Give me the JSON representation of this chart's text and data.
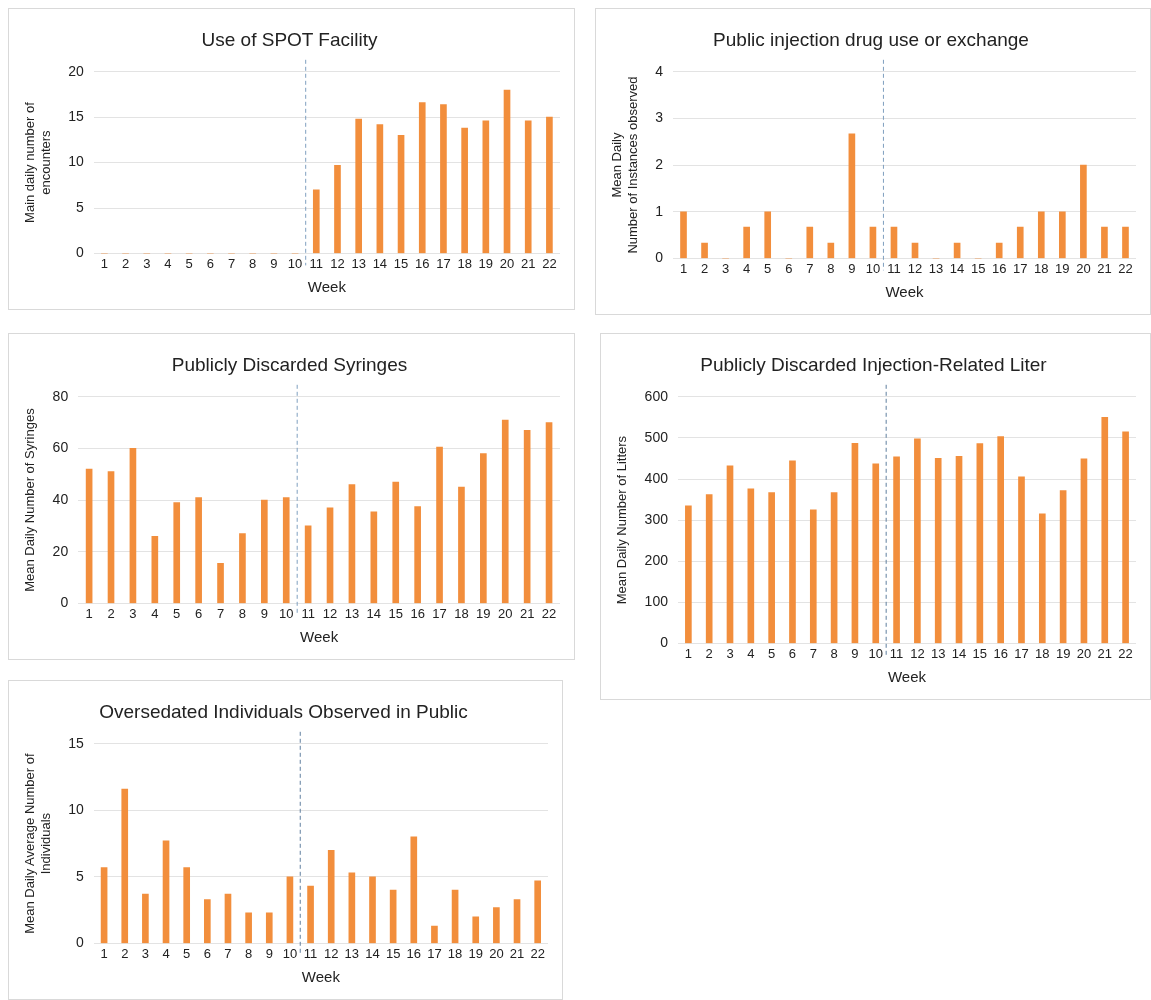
{
  "chart_data": [
    {
      "type": "bar",
      "title": "Use of SPOT Facility",
      "xlabel": "Week",
      "ylabel": "Main daily number of\nencounters",
      "x": [
        1,
        2,
        3,
        4,
        5,
        6,
        7,
        8,
        9,
        10,
        11,
        12,
        13,
        14,
        15,
        16,
        17,
        18,
        19,
        20,
        21,
        22
      ],
      "xlim": [
        0.5,
        22.5
      ],
      "xticks": [
        1,
        2,
        3,
        4,
        5,
        6,
        7,
        8,
        9,
        10,
        11,
        12,
        13,
        14,
        15,
        16,
        17,
        18,
        19,
        20,
        21,
        22
      ],
      "values": [
        0,
        0,
        0,
        0,
        0,
        0,
        0,
        0,
        0,
        0,
        7,
        9.7,
        14.8,
        14.2,
        13,
        16.6,
        16.4,
        13.8,
        14.6,
        18,
        14.6,
        15
      ],
      "color": "#f28e3c",
      "ylim": [
        0,
        20
      ],
      "yticks": [
        0,
        5,
        10,
        15,
        20
      ],
      "grid": "y",
      "legend": false,
      "ref_lines": [
        {
          "axis": "x",
          "value": 10.5,
          "color": "#7f9fbf",
          "line_style": "dashed"
        }
      ]
    },
    {
      "type": "bar",
      "title": "Public injection drug use or exchange",
      "xlabel": "Week",
      "ylabel": "Mean Daily\nNumber of Instances observed",
      "x": [
        1,
        2,
        3,
        4,
        5,
        6,
        7,
        8,
        9,
        10,
        11,
        12,
        13,
        14,
        15,
        16,
        17,
        18,
        19,
        20,
        21,
        22
      ],
      "xlim": [
        0.5,
        22.5
      ],
      "xticks": [
        1,
        2,
        3,
        4,
        5,
        6,
        7,
        8,
        9,
        10,
        11,
        12,
        13,
        14,
        15,
        16,
        17,
        18,
        19,
        20,
        21,
        22
      ],
      "values": [
        1,
        0.33,
        0,
        0.67,
        1,
        0,
        0.67,
        0.33,
        2.67,
        0.67,
        0.67,
        0.33,
        0,
        0.33,
        0,
        0.33,
        0.67,
        1,
        1,
        2,
        0.67,
        0.67
      ],
      "color": "#f28e3c",
      "ylim": [
        0,
        4
      ],
      "yticks": [
        0,
        1,
        2,
        3,
        4
      ],
      "grid": "y",
      "legend": false,
      "ref_lines": [
        {
          "axis": "x",
          "value": 10.5,
          "color": "#7f9fbf",
          "line_style": "dashed"
        }
      ]
    },
    {
      "type": "bar",
      "title": "Publicly Discarded Syringes",
      "xlabel": "Week",
      "ylabel": "Mean Daily Number of Syringes",
      "x": [
        1,
        2,
        3,
        4,
        5,
        6,
        7,
        8,
        9,
        10,
        11,
        12,
        13,
        14,
        15,
        16,
        17,
        18,
        19,
        20,
        21,
        22
      ],
      "xlim": [
        0.5,
        22.5
      ],
      "xticks": [
        1,
        2,
        3,
        4,
        5,
        6,
        7,
        8,
        9,
        10,
        11,
        12,
        13,
        14,
        15,
        16,
        17,
        18,
        19,
        20,
        21,
        22
      ],
      "values": [
        52,
        51,
        60,
        26,
        39,
        41,
        15.5,
        27,
        40,
        41,
        30,
        37,
        46,
        35.5,
        47,
        37.5,
        60.5,
        45,
        58,
        71,
        67,
        70
      ],
      "color": "#f28e3c",
      "ylim": [
        0,
        80
      ],
      "yticks": [
        0,
        20,
        40,
        60,
        80
      ],
      "grid": "y",
      "legend": false,
      "ref_lines": [
        {
          "axis": "x",
          "value": 10.5,
          "color": "#7f9fbf",
          "line_style": "dashed"
        }
      ]
    },
    {
      "type": "bar",
      "title": "Publicly Discarded Injection-Related Liter",
      "xlabel": "Week",
      "ylabel": "Mean Daily Number of Litters",
      "x": [
        1,
        2,
        3,
        4,
        5,
        6,
        7,
        8,
        9,
        10,
        11,
        12,
        13,
        14,
        15,
        16,
        17,
        18,
        19,
        20,
        21,
        22
      ],
      "xlim": [
        0.5,
        22.5
      ],
      "xticks": [
        1,
        2,
        3,
        4,
        5,
        6,
        7,
        8,
        9,
        10,
        11,
        12,
        13,
        14,
        15,
        16,
        17,
        18,
        19,
        20,
        21,
        22
      ],
      "values": [
        335,
        362,
        432,
        376,
        367,
        444,
        325,
        367,
        487,
        437,
        454,
        498,
        450,
        455,
        486,
        503,
        405,
        315,
        372,
        449,
        550,
        515
      ],
      "color": "#f28e3c",
      "ylim": [
        0,
        600
      ],
      "yticks": [
        0,
        100,
        200,
        300,
        400,
        500,
        600
      ],
      "grid": "y",
      "legend": false,
      "ref_lines": [
        {
          "axis": "x",
          "value": 10.5,
          "color": "#5f7f9f",
          "line_style": "dashed"
        }
      ]
    },
    {
      "type": "bar",
      "title": "Oversedated Individuals Observed in Public",
      "xlabel": "Week",
      "ylabel": "Mean Daily Average Number of\nIndividuals",
      "x": [
        1,
        2,
        3,
        4,
        5,
        6,
        7,
        8,
        9,
        10,
        11,
        12,
        13,
        14,
        15,
        16,
        17,
        18,
        19,
        20,
        21,
        22
      ],
      "xlim": [
        0.5,
        22.5
      ],
      "xticks": [
        1,
        2,
        3,
        4,
        5,
        6,
        7,
        8,
        9,
        10,
        11,
        12,
        13,
        14,
        15,
        16,
        17,
        18,
        19,
        20,
        21,
        22
      ],
      "values": [
        5.7,
        11.6,
        3.7,
        7.7,
        5.7,
        3.3,
        3.7,
        2.3,
        2.3,
        5,
        4.3,
        7,
        5.3,
        5,
        4,
        8,
        1.3,
        4,
        2,
        2.7,
        3.3,
        4.7
      ],
      "color": "#f28e3c",
      "ylim": [
        0,
        15
      ],
      "yticks": [
        0,
        5,
        10,
        15
      ],
      "grid": "y",
      "legend": false,
      "ref_lines": [
        {
          "axis": "x",
          "value": 10.5,
          "color": "#5f7f9f",
          "line_style": "dashed"
        }
      ]
    }
  ]
}
